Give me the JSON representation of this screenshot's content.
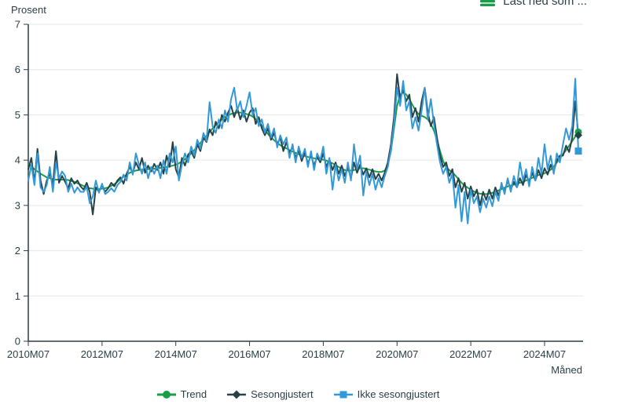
{
  "header": {
    "export_label": "Last ned som ...",
    "export_icon_color": "#1a9d49"
  },
  "axes": {
    "y_axis_title": "Prosent",
    "x_axis_title": "Måned"
  },
  "chart_data": {
    "type": "line",
    "x_start": "2010M07",
    "x_end": "2025M06",
    "x_frequency": "monthly",
    "ylim": [
      0,
      7
    ],
    "y_ticks": [
      0,
      1,
      2,
      3,
      4,
      5,
      6,
      7
    ],
    "grid": "horizontal",
    "grid_color": "#e6e6e6",
    "axis_color": "#2b3f46",
    "text_color": "#2b3f46",
    "legend_position": "bottom",
    "x_ticks": [
      {
        "label": "2010M07",
        "month_index": 0
      },
      {
        "label": "2012M07",
        "month_index": 24
      },
      {
        "label": "2014M07",
        "month_index": 48
      },
      {
        "label": "2016M07",
        "month_index": 72
      },
      {
        "label": "2018M07",
        "month_index": 96
      },
      {
        "label": "2020M07",
        "month_index": 120
      },
      {
        "label": "2022M07",
        "month_index": 144
      },
      {
        "label": "2024M07",
        "month_index": 168
      }
    ],
    "series": [
      {
        "name": "Trend",
        "color": "#1a9d49",
        "marker": "circle",
        "values": [
          3.92,
          3.86,
          3.8,
          3.75,
          3.7,
          3.66,
          3.62,
          3.6,
          3.58,
          3.57,
          3.57,
          3.57,
          3.57,
          3.56,
          3.54,
          3.52,
          3.49,
          3.46,
          3.43,
          3.4,
          3.38,
          3.37,
          3.36,
          3.36,
          3.37,
          3.38,
          3.4,
          3.43,
          3.47,
          3.52,
          3.58,
          3.63,
          3.68,
          3.72,
          3.75,
          3.77,
          3.78,
          3.79,
          3.8,
          3.8,
          3.81,
          3.81,
          3.82,
          3.83,
          3.84,
          3.85,
          3.86,
          3.88,
          3.9,
          3.93,
          3.97,
          4.02,
          4.08,
          4.15,
          4.22,
          4.3,
          4.38,
          4.46,
          4.54,
          4.62,
          4.7,
          4.77,
          4.84,
          4.9,
          4.95,
          4.99,
          5.02,
          5.04,
          5.05,
          5.05,
          5.04,
          5.02,
          5.0,
          4.96,
          4.91,
          4.84,
          4.76,
          4.67,
          4.58,
          4.5,
          4.44,
          4.38,
          4.33,
          4.29,
          4.26,
          4.22,
          4.19,
          4.16,
          4.13,
          4.11,
          4.09,
          4.07,
          4.06,
          4.04,
          4.03,
          4.02,
          4.01,
          3.99,
          3.96,
          3.93,
          3.89,
          3.85,
          3.81,
          3.78,
          3.77,
          3.77,
          3.78,
          3.8,
          3.82,
          3.82,
          3.81,
          3.79,
          3.77,
          3.75,
          3.74,
          3.74,
          3.77,
          3.9,
          4.2,
          4.7,
          5.2,
          5.45,
          5.5,
          5.45,
          5.35,
          5.22,
          5.1,
          5.02,
          4.98,
          4.95,
          4.9,
          4.8,
          4.65,
          4.45,
          4.2,
          3.98,
          3.85,
          3.78,
          3.73,
          3.66,
          3.58,
          3.5,
          3.44,
          3.39,
          3.35,
          3.31,
          3.28,
          3.26,
          3.25,
          3.25,
          3.26,
          3.28,
          3.3,
          3.33,
          3.36,
          3.39,
          3.42,
          3.44,
          3.46,
          3.48,
          3.5,
          3.52,
          3.55,
          3.58,
          3.61,
          3.64,
          3.67,
          3.69,
          3.71,
          3.74,
          3.79,
          3.86,
          3.95,
          4.04,
          4.13,
          4.22,
          4.32,
          4.42,
          4.52,
          4.62
        ]
      },
      {
        "name": "Sesongjustert",
        "color": "#274247",
        "marker": "diamond",
        "values": [
          3.8,
          4.05,
          3.5,
          4.25,
          3.55,
          3.25,
          3.55,
          3.7,
          3.45,
          4.2,
          3.5,
          3.65,
          3.52,
          3.38,
          3.6,
          3.48,
          3.55,
          3.42,
          3.35,
          3.5,
          3.3,
          2.8,
          3.4,
          3.3,
          3.45,
          3.3,
          3.38,
          3.5,
          3.42,
          3.55,
          3.62,
          3.48,
          3.7,
          3.85,
          3.72,
          3.95,
          3.8,
          4.05,
          3.72,
          3.88,
          3.75,
          3.92,
          3.78,
          3.95,
          3.7,
          4.1,
          3.85,
          4.4,
          3.8,
          3.62,
          4.05,
          3.88,
          4.12,
          4.2,
          4.05,
          4.35,
          4.2,
          4.5,
          4.4,
          4.68,
          4.55,
          4.85,
          4.7,
          5.0,
          4.85,
          5.05,
          5.2,
          4.95,
          5.15,
          4.9,
          5.1,
          4.85,
          5.05,
          5.15,
          4.8,
          4.95,
          4.7,
          4.55,
          4.7,
          4.45,
          4.6,
          4.35,
          4.5,
          4.2,
          4.4,
          4.15,
          4.3,
          4.05,
          4.22,
          3.98,
          4.18,
          3.92,
          4.12,
          3.88,
          4.08,
          3.95,
          4.15,
          3.85,
          4.02,
          3.78,
          3.95,
          3.7,
          3.88,
          3.65,
          3.85,
          3.6,
          3.95,
          3.72,
          3.9,
          3.68,
          3.82,
          3.62,
          3.8,
          3.58,
          3.7,
          3.55,
          3.72,
          3.95,
          4.35,
          4.95,
          5.9,
          5.35,
          5.55,
          5.3,
          5.45,
          4.95,
          5.15,
          4.85,
          5.3,
          5.6,
          5.05,
          4.75,
          4.95,
          4.5,
          4.1,
          3.85,
          3.95,
          3.65,
          3.8,
          3.4,
          3.6,
          3.3,
          3.5,
          3.15,
          3.42,
          3.2,
          3.35,
          3.0,
          3.3,
          3.12,
          3.35,
          3.15,
          3.4,
          3.22,
          3.45,
          3.3,
          3.55,
          3.35,
          3.52,
          3.4,
          3.6,
          3.45,
          3.68,
          3.5,
          3.72,
          3.55,
          3.78,
          3.6,
          3.82,
          3.68,
          3.9,
          3.75,
          4.0,
          4.1,
          4.1,
          4.32,
          4.18,
          4.5,
          5.3,
          4.55
        ]
      },
      {
        "name": "Ikke sesongjustert",
        "color": "#3398d8",
        "marker": "square",
        "values": [
          3.55,
          3.9,
          3.45,
          4.15,
          3.4,
          3.3,
          3.45,
          3.85,
          3.3,
          3.95,
          3.6,
          3.75,
          3.65,
          3.3,
          3.48,
          3.28,
          3.4,
          3.3,
          3.3,
          3.42,
          3.05,
          3.2,
          3.55,
          3.28,
          3.48,
          3.25,
          3.3,
          3.38,
          3.3,
          3.45,
          3.52,
          3.68,
          3.55,
          3.95,
          3.68,
          4.15,
          3.9,
          3.7,
          3.95,
          3.6,
          3.85,
          3.7,
          3.88,
          3.6,
          4.0,
          3.7,
          4.15,
          3.95,
          4.3,
          3.55,
          3.9,
          4.15,
          3.95,
          4.3,
          4.1,
          4.45,
          4.25,
          4.6,
          4.42,
          5.28,
          4.75,
          4.6,
          4.9,
          4.7,
          5.1,
          4.85,
          5.35,
          5.6,
          5.1,
          5.3,
          4.95,
          5.2,
          5.5,
          5.0,
          5.15,
          4.75,
          4.9,
          4.6,
          4.8,
          4.5,
          4.7,
          4.28,
          4.55,
          4.35,
          4.5,
          4.05,
          4.35,
          3.95,
          4.3,
          4.05,
          4.25,
          3.85,
          4.2,
          3.78,
          4.15,
          4.0,
          4.3,
          3.7,
          4.05,
          3.35,
          3.9,
          3.55,
          3.8,
          3.5,
          3.95,
          3.55,
          4.35,
          3.8,
          4.1,
          3.22,
          3.75,
          3.45,
          3.7,
          3.35,
          3.6,
          3.4,
          3.65,
          3.85,
          4.25,
          4.8,
          5.6,
          5.2,
          5.75,
          5.1,
          5.3,
          4.7,
          4.95,
          4.65,
          5.1,
          5.6,
          4.9,
          5.35,
          4.8,
          4.35,
          3.95,
          3.7,
          3.85,
          3.5,
          3.7,
          2.95,
          3.45,
          2.65,
          3.3,
          2.6,
          3.35,
          3.05,
          3.2,
          2.85,
          3.15,
          2.95,
          3.2,
          2.98,
          3.3,
          3.1,
          3.5,
          3.25,
          3.6,
          3.3,
          3.65,
          3.4,
          3.95,
          3.55,
          3.8,
          3.42,
          3.85,
          3.55,
          4.05,
          3.7,
          4.35,
          3.8,
          4.1,
          3.7,
          4.15,
          3.95,
          4.35,
          4.7,
          4.45,
          4.75,
          5.8,
          4.2
        ]
      }
    ]
  }
}
